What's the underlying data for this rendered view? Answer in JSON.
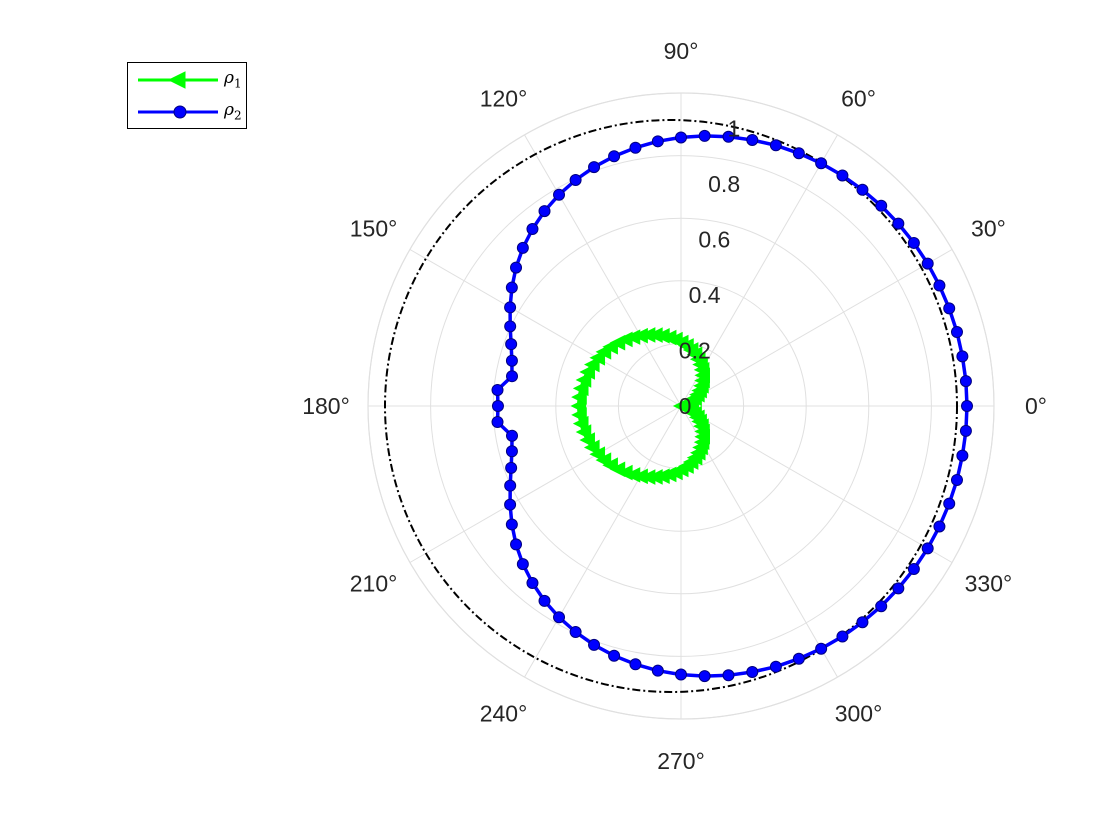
{
  "chart_data": {
    "type": "polar-line",
    "title": "",
    "theta_ticks_deg": [
      0,
      30,
      60,
      90,
      120,
      150,
      180,
      210,
      240,
      270,
      300,
      330
    ],
    "theta_tick_labels": [
      "0°",
      "30°",
      "60°",
      "90°",
      "120°",
      "150°",
      "180°",
      "210°",
      "240°",
      "270°",
      "300°",
      "330°"
    ],
    "r_ticks": [
      0,
      0.2,
      0.4,
      0.6,
      0.8,
      1
    ],
    "r_tick_labels": [
      "0",
      "0.2",
      "0.4",
      "0.6",
      "0.8",
      "1"
    ],
    "rlim": [
      0,
      1
    ],
    "grid": true,
    "legend_position": "top-left",
    "reference_circle": {
      "r": 1.0,
      "style": "dash-dot",
      "color": "#000000"
    },
    "series": [
      {
        "name": "ρ1",
        "legend_symbol": "ρ",
        "legend_subscript": "1",
        "color": "#00ff00",
        "marker": "triangle-left",
        "theta_deg": [
          0,
          5,
          10,
          15,
          20,
          25,
          30,
          35,
          40,
          45,
          50,
          55,
          60,
          65,
          70,
          75,
          80,
          85,
          90,
          95,
          100,
          105,
          110,
          115,
          120,
          125,
          130,
          135,
          140,
          145,
          150,
          155,
          160,
          165,
          170,
          175,
          180,
          185,
          190,
          195,
          200,
          205,
          210,
          215,
          220,
          225,
          230,
          235,
          240,
          245,
          250,
          255,
          260,
          265,
          270,
          275,
          280,
          285,
          290,
          295,
          300,
          305,
          310,
          315,
          320,
          325,
          330,
          335,
          340,
          345,
          350,
          355
        ],
        "r": [
          0.0,
          0.005,
          0.009,
          0.018,
          0.028,
          0.04,
          0.054,
          0.069,
          0.084,
          0.1,
          0.116,
          0.131,
          0.146,
          0.16,
          0.174,
          0.187,
          0.199,
          0.211,
          0.222,
          0.233,
          0.243,
          0.254,
          0.264,
          0.274,
          0.284,
          0.294,
          0.304,
          0.313,
          0.322,
          0.33,
          0.337,
          0.343,
          0.348,
          0.352,
          0.355,
          0.357,
          0.358,
          0.357,
          0.355,
          0.352,
          0.348,
          0.343,
          0.337,
          0.33,
          0.322,
          0.313,
          0.304,
          0.294,
          0.284,
          0.274,
          0.264,
          0.254,
          0.243,
          0.233,
          0.222,
          0.211,
          0.199,
          0.187,
          0.174,
          0.16,
          0.146,
          0.131,
          0.116,
          0.1,
          0.084,
          0.069,
          0.054,
          0.04,
          0.028,
          0.018,
          0.009,
          0.005
        ]
      },
      {
        "name": "ρ2",
        "legend_symbol": "ρ",
        "legend_subscript": "2",
        "color": "#0000ff",
        "marker": "circle",
        "theta_deg": [
          0,
          5,
          10,
          15,
          20,
          25,
          30,
          35,
          40,
          45,
          50,
          55,
          60,
          65,
          70,
          75,
          80,
          85,
          90,
          95,
          100,
          105,
          110,
          115,
          120,
          125,
          130,
          135,
          140,
          145,
          150,
          155,
          160,
          165,
          170,
          175,
          180,
          185,
          190,
          195,
          200,
          205,
          210,
          215,
          220,
          225,
          230,
          235,
          240,
          245,
          250,
          255,
          260,
          265,
          270,
          275,
          280,
          285,
          290,
          295,
          300,
          305,
          310,
          315,
          320,
          325,
          330,
          335,
          340,
          345,
          350,
          355
        ],
        "r": [
          1.0,
          1.0,
          0.999,
          0.999,
          0.998,
          0.997,
          0.996,
          0.994,
          0.992,
          0.99,
          0.987,
          0.984,
          0.98,
          0.975,
          0.97,
          0.963,
          0.956,
          0.948,
          0.939,
          0.929,
          0.917,
          0.904,
          0.889,
          0.872,
          0.853,
          0.832,
          0.808,
          0.782,
          0.753,
          0.722,
          0.69,
          0.659,
          0.632,
          0.612,
          0.6,
          0.644,
          0.64,
          0.644,
          0.6,
          0.612,
          0.632,
          0.659,
          0.69,
          0.722,
          0.753,
          0.782,
          0.808,
          0.832,
          0.853,
          0.872,
          0.889,
          0.904,
          0.917,
          0.929,
          0.939,
          0.948,
          0.956,
          0.963,
          0.97,
          0.975,
          0.98,
          0.984,
          0.987,
          0.99,
          0.992,
          0.994,
          0.996,
          0.997,
          0.998,
          0.999,
          0.999,
          1.0
        ]
      }
    ]
  }
}
